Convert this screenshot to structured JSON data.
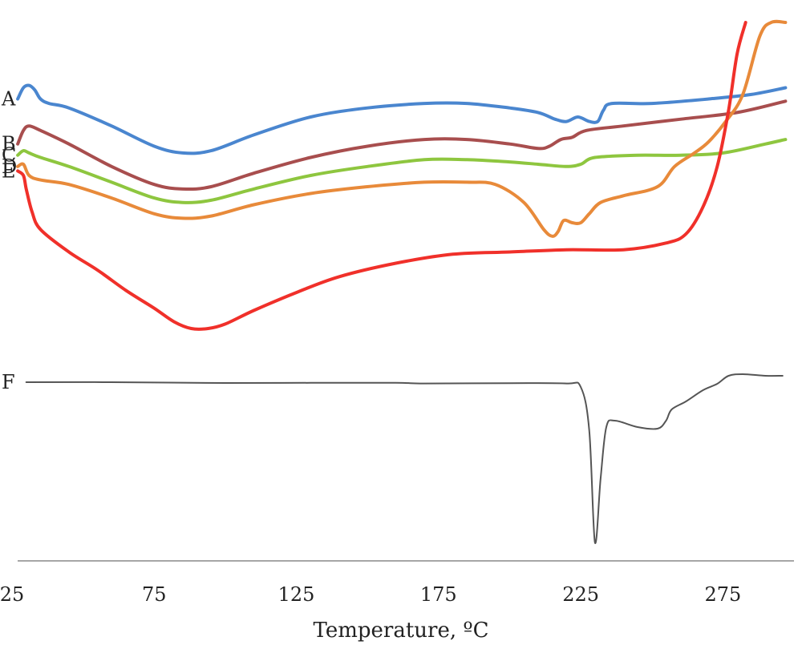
{
  "chart_data": {
    "type": "line",
    "title": "",
    "xlabel": "Temperature, ºC",
    "ylabel": "",
    "xlim": [
      25,
      300
    ],
    "x_ticks": [
      25,
      75,
      125,
      175,
      225,
      275
    ],
    "grid": false,
    "legend": "none",
    "note": "Stacked DSC thermograms (arbitrary heat flow, vertically offset)",
    "series": [
      {
        "name": "A",
        "color": "#4A86CF",
        "points": [
          [
            27,
            90
          ],
          [
            29,
            95
          ],
          [
            31,
            96
          ],
          [
            33,
            94
          ],
          [
            35,
            90
          ],
          [
            38,
            88
          ],
          [
            45,
            86
          ],
          [
            60,
            78
          ],
          [
            75,
            69
          ],
          [
            85,
            66
          ],
          [
            95,
            67
          ],
          [
            110,
            74
          ],
          [
            130,
            82
          ],
          [
            150,
            86
          ],
          [
            170,
            88
          ],
          [
            185,
            88
          ],
          [
            200,
            86
          ],
          [
            210,
            84
          ],
          [
            216,
            81
          ],
          [
            220,
            80
          ],
          [
            224,
            82
          ],
          [
            228,
            80
          ],
          [
            231,
            80
          ],
          [
            233,
            85
          ],
          [
            236,
            88
          ],
          [
            250,
            88
          ],
          [
            270,
            90
          ],
          [
            285,
            92
          ],
          [
            297,
            95
          ]
        ]
      },
      {
        "name": "B",
        "color": "#A84E4E",
        "points": [
          [
            27,
            70
          ],
          [
            29,
            76
          ],
          [
            31,
            78
          ],
          [
            35,
            76
          ],
          [
            45,
            70
          ],
          [
            60,
            60
          ],
          [
            75,
            52
          ],
          [
            85,
            50
          ],
          [
            95,
            51
          ],
          [
            110,
            57
          ],
          [
            130,
            64
          ],
          [
            150,
            69
          ],
          [
            170,
            72
          ],
          [
            185,
            72
          ],
          [
            200,
            70
          ],
          [
            210,
            68
          ],
          [
            214,
            69
          ],
          [
            218,
            72
          ],
          [
            222,
            73
          ],
          [
            227,
            76
          ],
          [
            240,
            78
          ],
          [
            260,
            81
          ],
          [
            280,
            84
          ],
          [
            297,
            89
          ]
        ]
      },
      {
        "name": "C",
        "color": "#8EC63F",
        "points": [
          [
            27,
            65
          ],
          [
            29,
            67
          ],
          [
            31,
            66
          ],
          [
            35,
            64
          ],
          [
            45,
            60
          ],
          [
            60,
            53
          ],
          [
            75,
            46
          ],
          [
            85,
            44
          ],
          [
            95,
            45
          ],
          [
            110,
            50
          ],
          [
            130,
            56
          ],
          [
            150,
            60
          ],
          [
            170,
            63
          ],
          [
            185,
            63
          ],
          [
            200,
            62
          ],
          [
            210,
            61
          ],
          [
            220,
            60
          ],
          [
            225,
            61
          ],
          [
            230,
            64
          ],
          [
            245,
            65
          ],
          [
            260,
            65
          ],
          [
            275,
            66
          ],
          [
            290,
            70
          ],
          [
            297,
            72
          ]
        ]
      },
      {
        "name": "D",
        "color": "#E88A3A",
        "points": [
          [
            27,
            60
          ],
          [
            29,
            61
          ],
          [
            31,
            56
          ],
          [
            35,
            54
          ],
          [
            45,
            52
          ],
          [
            60,
            46
          ],
          [
            75,
            39
          ],
          [
            85,
            37
          ],
          [
            95,
            38
          ],
          [
            110,
            43
          ],
          [
            130,
            48
          ],
          [
            150,
            51
          ],
          [
            170,
            53
          ],
          [
            185,
            53
          ],
          [
            195,
            52
          ],
          [
            205,
            44
          ],
          [
            212,
            32
          ],
          [
            215,
            29
          ],
          [
            217,
            31
          ],
          [
            219,
            36
          ],
          [
            222,
            35
          ],
          [
            225,
            35
          ],
          [
            228,
            39
          ],
          [
            232,
            44
          ],
          [
            240,
            47
          ],
          [
            252,
            51
          ],
          [
            258,
            60
          ],
          [
            265,
            66
          ],
          [
            270,
            71
          ],
          [
            276,
            80
          ],
          [
            282,
            92
          ],
          [
            288,
            118
          ],
          [
            292,
            124
          ],
          [
            297,
            124
          ]
        ]
      },
      {
        "name": "E",
        "color": "#F0302A",
        "points": [
          [
            27,
            58
          ],
          [
            29,
            56
          ],
          [
            30,
            50
          ],
          [
            32,
            40
          ],
          [
            35,
            32
          ],
          [
            45,
            22
          ],
          [
            55,
            14
          ],
          [
            65,
            5
          ],
          [
            75,
            -3
          ],
          [
            82,
            -9
          ],
          [
            88,
            -12
          ],
          [
            94,
            -12
          ],
          [
            100,
            -10
          ],
          [
            110,
            -4
          ],
          [
            125,
            4
          ],
          [
            140,
            11
          ],
          [
            160,
            17
          ],
          [
            180,
            21
          ],
          [
            200,
            22
          ],
          [
            220,
            23
          ],
          [
            240,
            23
          ],
          [
            255,
            26
          ],
          [
            262,
            30
          ],
          [
            268,
            42
          ],
          [
            273,
            60
          ],
          [
            277,
            85
          ],
          [
            280,
            110
          ],
          [
            283,
            124
          ]
        ]
      },
      {
        "name": "F",
        "color": "#555555",
        "points": [
          [
            30,
            0
          ],
          [
            60,
            0
          ],
          [
            100,
            -0.5
          ],
          [
            130,
            -0.4
          ],
          [
            160,
            -0.4
          ],
          [
            170,
            -0.8
          ],
          [
            200,
            -0.6
          ],
          [
            220,
            -0.8
          ],
          [
            225,
            -3
          ],
          [
            228,
            -30
          ],
          [
            230,
            -100
          ],
          [
            232,
            -60
          ],
          [
            234,
            -28
          ],
          [
            237,
            -24
          ],
          [
            245,
            -28
          ],
          [
            252,
            -29
          ],
          [
            255,
            -24
          ],
          [
            257,
            -17
          ],
          [
            262,
            -12
          ],
          [
            268,
            -5
          ],
          [
            273,
            -1
          ],
          [
            277,
            4
          ],
          [
            282,
            5
          ],
          [
            290,
            4
          ],
          [
            296,
            4
          ]
        ]
      }
    ]
  }
}
